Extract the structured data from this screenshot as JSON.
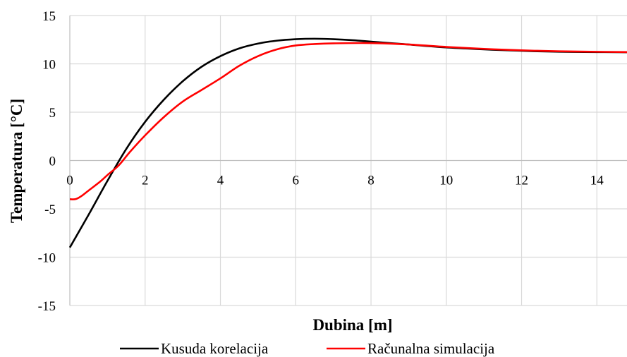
{
  "chart_data": {
    "type": "line",
    "xlabel": "Dubina [m]",
    "ylabel": "Temperatura [°C]",
    "xlim": [
      0,
      14.8
    ],
    "ylim": [
      -15,
      15
    ],
    "xticks": [
      0,
      2,
      4,
      6,
      8,
      10,
      12,
      14
    ],
    "yticks": [
      -15,
      -10,
      -5,
      0,
      5,
      10,
      15
    ],
    "grid": true,
    "legend_position": "bottom",
    "series": [
      {
        "name": "Kusuda korelacija",
        "color": "#000000",
        "x": [
          0,
          0.5,
          1,
          1.5,
          2,
          2.5,
          3,
          3.5,
          4,
          4.5,
          5,
          5.5,
          6,
          6.5,
          7,
          7.5,
          8,
          9,
          10,
          11,
          12,
          13,
          14,
          14.8
        ],
        "y": [
          -9,
          -5.6,
          -2.1,
          1.2,
          4.0,
          6.3,
          8.2,
          9.7,
          10.8,
          11.6,
          12.1,
          12.4,
          12.55,
          12.6,
          12.55,
          12.45,
          12.3,
          12.0,
          11.7,
          11.5,
          11.35,
          11.25,
          11.22,
          11.2
        ]
      },
      {
        "name": "Računalna simulacija",
        "color": "#ff0000",
        "x": [
          0,
          0.15,
          0.3,
          0.5,
          0.8,
          1,
          1.3,
          1.6,
          2,
          2.5,
          3,
          3.5,
          4,
          4.5,
          5,
          5.5,
          6,
          6.5,
          7,
          8,
          9,
          10,
          11,
          12,
          13,
          14,
          14.8
        ],
        "y": [
          -4.0,
          -4.0,
          -3.7,
          -3.1,
          -2.2,
          -1.5,
          -0.5,
          0.9,
          2.6,
          4.5,
          6.1,
          7.3,
          8.5,
          9.8,
          10.8,
          11.5,
          11.9,
          12.05,
          12.12,
          12.15,
          12.0,
          11.75,
          11.55,
          11.4,
          11.3,
          11.25,
          11.22
        ]
      }
    ]
  }
}
